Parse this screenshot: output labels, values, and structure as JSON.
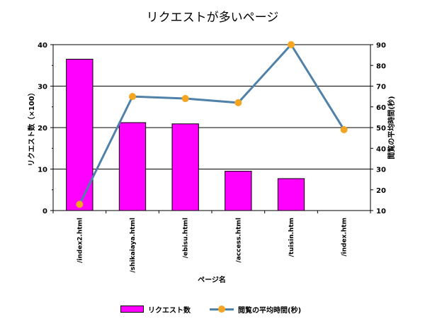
{
  "chart_data": {
    "type": "bar+line",
    "title": "リクエストが多いページ",
    "xlabel": "ページ名",
    "categories": [
      "/index2.html",
      "/shikaiaya.html",
      "/ebisu.html",
      "/access.html",
      "/tuisin.htm",
      "/index.htm"
    ],
    "series": [
      {
        "name": "リクエスト数",
        "type": "bar",
        "axis": "left",
        "color": "#ff00ff",
        "values": [
          36.5,
          21.2,
          20.9,
          9.5,
          7.7,
          0
        ]
      },
      {
        "name": "閲覧の平均時間(秒)",
        "type": "line",
        "axis": "right",
        "color": "#4f81a9",
        "marker_color": "#f4a522",
        "values": [
          13,
          65,
          64,
          62,
          90,
          49
        ]
      }
    ],
    "left_axis": {
      "label": "リクエスト数（×100）",
      "ylim": [
        0,
        40
      ],
      "ticks": [
        "0",
        "10",
        "20",
        "30",
        "40"
      ]
    },
    "right_axis": {
      "label": "閲覧の平均時間(秒)",
      "ylim": [
        10,
        90
      ],
      "ticks": [
        "10",
        "20",
        "30",
        "40",
        "50",
        "60",
        "70",
        "80",
        "90"
      ]
    },
    "grid": true,
    "legend": "bottom"
  }
}
